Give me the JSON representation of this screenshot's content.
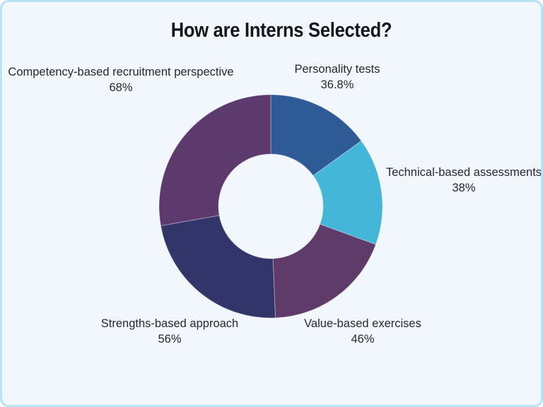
{
  "title": "How are Interns Selected?",
  "frame": {
    "background_color": "#f2f7fd",
    "border_color": "#b9e2f5"
  },
  "chart_data": {
    "type": "pie",
    "variant": "donut",
    "title": "How are Interns Selected?",
    "normalized_to_full_circle": true,
    "start_angle_deg": 0,
    "direction": "clockwise",
    "inner_radius_ratio": 0.47,
    "legend_position": "around-slices",
    "segments": [
      {
        "label": "Personality tests",
        "value": 36.8,
        "display": "36.8%",
        "color": "#2e5b96"
      },
      {
        "label": "Technical-based assessments",
        "value": 38,
        "display": "38%",
        "color": "#44b7d8"
      },
      {
        "label": "Value-based exercises",
        "value": 46,
        "display": "46%",
        "color": "#5f3b69"
      },
      {
        "label": "Strengths-based approach",
        "value": 56,
        "display": "56%",
        "color": "#32356a"
      },
      {
        "label": "Competency-based recruitment perspective",
        "value": 68,
        "display": "68%",
        "color": "#5c3a6e"
      }
    ]
  }
}
